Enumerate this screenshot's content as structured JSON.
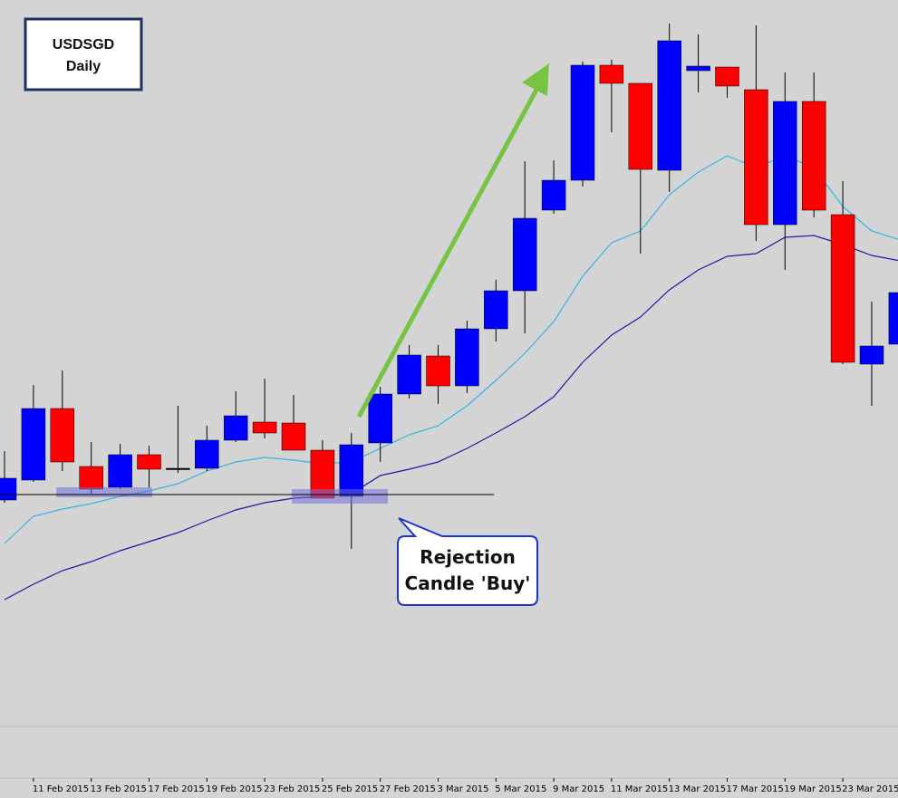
{
  "chart_data": {
    "type": "candlestick",
    "title": "USDSGD",
    "subtitle": "Daily",
    "annotations": [
      "Rejection",
      "Candle 'Buy'"
    ],
    "categories": [
      null,
      "11 Feb 2015",
      null,
      "13 Feb 2015",
      null,
      "17 Feb 2015",
      null,
      "19 Feb 2015",
      null,
      "23 Feb 2015",
      null,
      "25 Feb 2015",
      null,
      "27 Feb 2015",
      null,
      "3 Mar 2015",
      null,
      "5 Mar 2015",
      null,
      "9 Mar 2015",
      null,
      "11 Mar 2015",
      null,
      "13 Mar 2015",
      null,
      "17 Mar 2015",
      null,
      "19 Mar 2015",
      null,
      "23 Mar 2015",
      null,
      null
    ],
    "open": [
      248,
      270,
      349,
      285,
      262,
      298,
      283,
      283,
      314,
      334,
      333,
      303,
      252,
      311,
      365,
      407,
      374,
      437,
      479,
      568,
      601,
      728,
      708,
      612,
      722,
      726,
      701,
      552,
      688,
      563,
      398,
      420
    ],
    "high": [
      302,
      375,
      391,
      312,
      310,
      308,
      352,
      330,
      368,
      382,
      364,
      314,
      322,
      373,
      419,
      419,
      446,
      491,
      622,
      623,
      732,
      734,
      708,
      774,
      762,
      726,
      772,
      720,
      720,
      600,
      467,
      490
    ],
    "low": [
      245,
      268,
      280,
      255,
      260,
      262,
      278,
      280,
      312,
      316,
      303,
      250,
      194,
      290,
      360,
      354,
      366,
      423,
      432,
      564,
      594,
      654,
      520,
      588,
      698,
      692,
      534,
      502,
      560,
      398,
      352,
      410
    ],
    "close": [
      272,
      349,
      290,
      260,
      298,
      282,
      283,
      314,
      341,
      322,
      303,
      250,
      309,
      365,
      408,
      374,
      437,
      479,
      559,
      601,
      728,
      708,
      613,
      755,
      727,
      705,
      552,
      688,
      568,
      400,
      418,
      477
    ],
    "up_color": "#0000ff",
    "down_color": "#ff0000",
    "doji_color": "#000000",
    "lines": [
      {
        "color": "#33b5e5",
        "values": [
          200,
          230,
          238,
          244,
          252,
          258,
          266,
          280,
          290,
          295,
          292,
          288,
          290,
          305,
          320,
          330,
          352,
          380,
          410,
          445,
          495,
          532,
          545,
          585,
          610,
          628,
          615,
          628,
          615,
          572,
          545,
          535
        ]
      },
      {
        "color": "#1a1aa6",
        "values": [
          138,
          155,
          170,
          180,
          192,
          202,
          212,
          225,
          237,
          245,
          250,
          252,
          255,
          275,
          282,
          290,
          305,
          322,
          340,
          362,
          400,
          430,
          450,
          480,
          502,
          517,
          520,
          538,
          540,
          530,
          518,
          512
        ]
      }
    ],
    "ylim": [
      0,
      800
    ]
  }
}
